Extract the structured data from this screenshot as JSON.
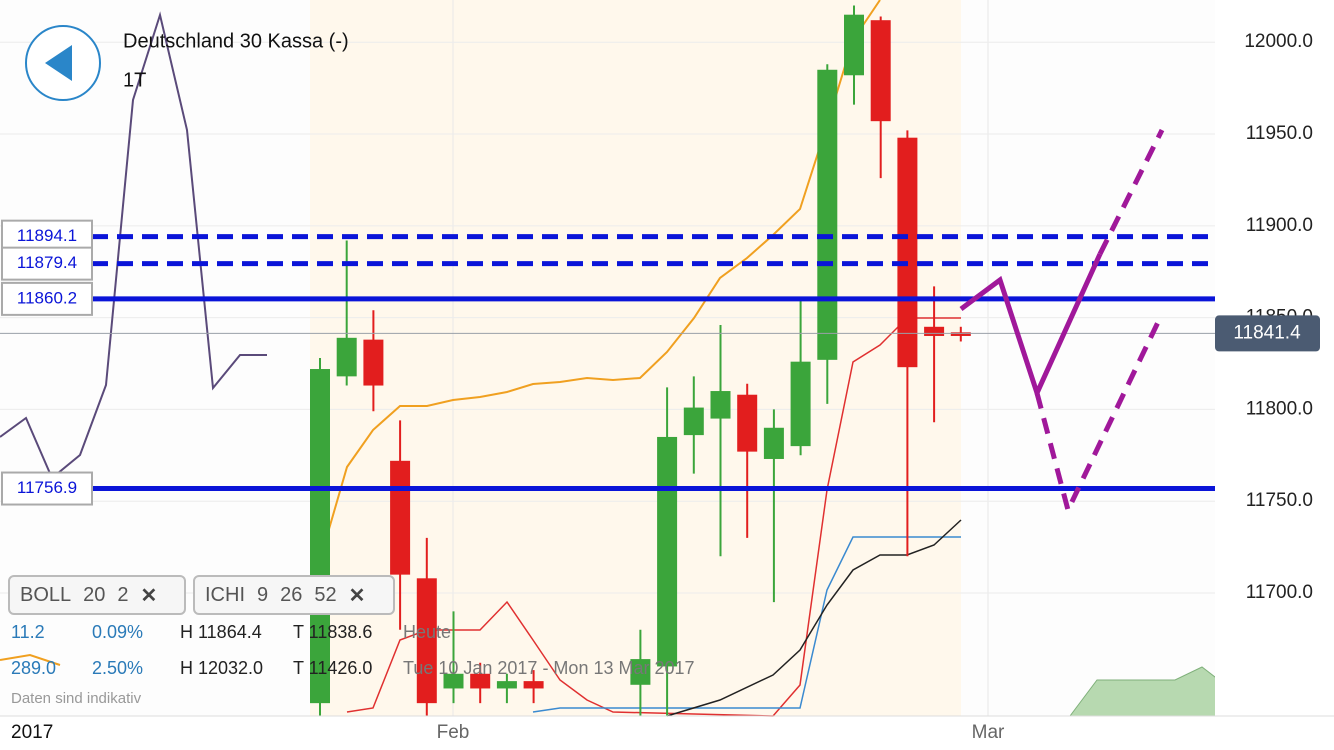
{
  "header": {
    "title": "Deutschland 30 Kassa (-)",
    "period": "1T"
  },
  "chart_data": {
    "type": "candlestick",
    "ylim": [
      11633,
      12023
    ],
    "yticks": [
      {
        "value": 11700,
        "label": "11700.0"
      },
      {
        "value": 11750,
        "label": "11750.0"
      },
      {
        "value": 11800,
        "label": "11800.0"
      },
      {
        "value": 11850,
        "label": "11850.0"
      },
      {
        "value": 11900,
        "label": "11900.0"
      },
      {
        "value": 11950,
        "label": "11950.0"
      },
      {
        "value": 12000,
        "label": "12000.0"
      }
    ],
    "xlabels": [
      "2017",
      "Feb",
      "Mar"
    ],
    "open": [
      11640,
      11818,
      11838,
      11772,
      11708,
      11648,
      11656,
      11648,
      11652,
      null,
      null,
      null,
      11650,
      11660,
      11786,
      11795,
      11808,
      11773,
      11780,
      11827,
      11982,
      12012,
      11948,
      11845,
      11842
    ],
    "high": [
      11828,
      11892,
      11854,
      11794,
      11730,
      11690,
      11662,
      11656,
      11658,
      null,
      null,
      null,
      11680,
      11812,
      11818,
      11846,
      11814,
      11800,
      11860,
      11988,
      12020,
      12014,
      11952,
      11867,
      11845
    ],
    "low": [
      11600,
      11813,
      11799,
      11680,
      11600,
      11640,
      11640,
      11640,
      11640,
      null,
      null,
      null,
      11630,
      11630,
      11765,
      11720,
      11730,
      11695,
      11775,
      11803,
      11966,
      11926,
      11720,
      11793,
      11837
    ],
    "close": [
      11822,
      11839,
      11813,
      11710,
      11640,
      11656,
      11648,
      11652,
      11648,
      null,
      null,
      null,
      11664,
      11785,
      11801,
      11810,
      11777,
      11790,
      11826,
      11985,
      12015,
      11957,
      11823,
      11840,
      11840
    ],
    "levels": [
      {
        "value": 11894.1,
        "label": "11894.1",
        "style": "dashed"
      },
      {
        "value": 11879.4,
        "label": "11879.4",
        "style": "dashed"
      },
      {
        "value": 11860.2,
        "label": "11860.2",
        "style": "solid"
      },
      {
        "value": 11756.9,
        "label": "11756.9",
        "style": "solid"
      }
    ],
    "current": {
      "value": 11841.4,
      "label": "11841.4"
    },
    "up_color": "#3ba53b",
    "down_color": "#e21e1e",
    "level_color": "#0a14d8"
  },
  "indicators": [
    {
      "name": "BOLL",
      "params": [
        "20",
        "2"
      ]
    },
    {
      "name": "ICHI",
      "params": [
        "9",
        "26",
        "52"
      ]
    }
  ],
  "stats": [
    [
      "11.2",
      "0.09%",
      "H 11864.4",
      "T 11838.6",
      "Heute"
    ],
    [
      "289.0",
      "2.50%",
      "H 12032.0",
      "T 11426.0",
      "Tue 10 Jan 2017 - Mon 13 Mar 2017"
    ]
  ],
  "note": "Daten sind indikativ"
}
